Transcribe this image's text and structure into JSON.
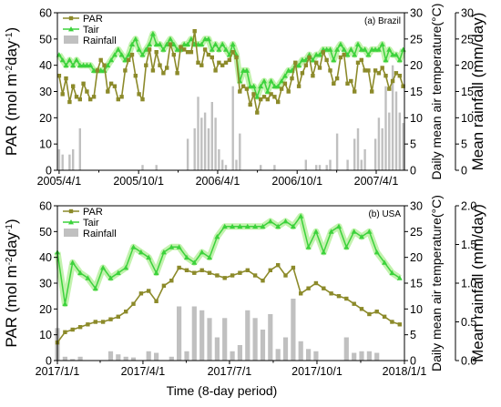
{
  "chart_data": [
    {
      "type": "line",
      "panel_label": "(a) Brazil",
      "x_ticks": [
        "2005/4/1",
        "2005/10/1",
        "2006/4/1",
        "2006/10/1",
        "2007/4/1"
      ],
      "x_range": [
        "2005-03-28",
        "2007-06-05"
      ],
      "y_left": {
        "label": "PAR (mol m-2day-1)",
        "label_main": "PAR (mol m",
        "label_sup1": "-2",
        "label_mid": "day",
        "label_sup2": "-1",
        "label_end": ")",
        "range": [
          0,
          60
        ],
        "ticks": [
          "0",
          "10",
          "20",
          "30",
          "40",
          "50",
          "60"
        ]
      },
      "y_right1": {
        "label": "Daily mean air temperature(°C)",
        "range": [
          0,
          30
        ],
        "ticks": [
          "0",
          "5",
          "10",
          "15",
          "20",
          "25",
          "30"
        ]
      },
      "y_right2": {
        "label": "Mean rainfall (mm/day)",
        "range": [
          0,
          30
        ],
        "ticks": [
          "0",
          "5",
          "10",
          "15",
          "20",
          "25",
          "30"
        ]
      },
      "legend": {
        "position": "top-left",
        "entries": [
          "PAR",
          "Tair",
          "Rainfall"
        ]
      },
      "colors": {
        "par": "#8c8a2a",
        "tair": "#3cd23c",
        "tair_glow": "#b8f0a0",
        "rainfall": "#c0c0c0"
      },
      "series": [
        {
          "name": "PAR",
          "axis": "left",
          "start": "2005-04-01",
          "step_days": 8,
          "values": [
            36,
            29,
            35,
            26,
            32,
            28,
            27,
            33,
            30,
            27,
            28,
            38,
            42,
            40,
            30,
            33,
            32,
            27,
            28,
            38,
            42,
            44,
            36,
            29,
            27,
            40,
            46,
            38,
            45,
            40,
            37,
            39,
            48,
            44,
            37,
            47,
            46,
            45,
            45,
            53,
            41,
            40,
            46,
            44,
            43,
            38,
            41,
            40,
            41,
            42,
            45,
            43,
            30,
            32,
            31,
            25,
            29,
            22,
            27,
            28,
            27,
            29,
            28,
            26,
            31,
            33,
            30,
            35,
            41,
            32,
            37,
            40,
            43,
            36,
            41,
            39,
            45,
            42,
            38,
            33,
            35,
            43,
            44,
            33,
            34,
            30,
            41,
            42,
            38,
            38,
            30,
            38,
            37,
            39,
            36,
            31,
            34,
            37,
            36,
            32,
            34,
            29,
            30,
            28,
            29,
            28
          ]
        },
        {
          "name": "Tair",
          "axis": "right1",
          "start": "2005-04-01",
          "step_days": 8,
          "values": [
            22,
            21,
            20,
            21,
            20,
            21,
            20,
            20,
            20,
            20,
            19,
            19,
            19,
            19,
            20,
            21,
            22,
            23,
            22,
            21,
            22,
            24,
            25,
            23,
            22,
            23,
            24,
            26,
            24,
            24,
            23,
            24,
            25,
            24,
            23,
            23,
            24,
            24,
            25,
            24,
            24,
            24,
            25,
            25,
            23,
            24,
            23,
            24,
            23,
            22,
            24,
            22,
            17,
            19,
            19,
            16,
            16,
            14,
            16,
            17,
            15,
            17,
            16,
            16,
            17,
            18,
            19,
            19,
            20,
            20,
            21,
            21,
            22,
            21,
            22,
            22,
            23,
            23,
            23,
            21,
            23,
            24,
            23,
            22,
            23,
            22,
            24,
            23,
            23,
            22,
            23,
            23,
            23,
            24,
            21,
            23,
            22,
            22,
            21,
            23,
            22,
            21,
            21,
            21,
            20,
            21
          ]
        },
        {
          "name": "Rainfall",
          "axis": "right2",
          "type": "bar",
          "start": "2005-04-01",
          "step_days": 8,
          "values": [
            4,
            3,
            0,
            3,
            4,
            0,
            8,
            0,
            0,
            0,
            0,
            0,
            0,
            0,
            0,
            0,
            0,
            0,
            0,
            0,
            0,
            0,
            0,
            0,
            1,
            0,
            0,
            0,
            1,
            0,
            0,
            0,
            0,
            0,
            0,
            0,
            0,
            6,
            0,
            8,
            14,
            10,
            11,
            8,
            13,
            10,
            4,
            2,
            1,
            0,
            16,
            2,
            7,
            0,
            0,
            0,
            0,
            0,
            1,
            0,
            0,
            0,
            1,
            0,
            0,
            0,
            0,
            0,
            0,
            0,
            0,
            2,
            0,
            0,
            1,
            1,
            0,
            1,
            2,
            0,
            7,
            0,
            0,
            2,
            0,
            6,
            8,
            2,
            4,
            0,
            0,
            6,
            10,
            8,
            16,
            11,
            20,
            15,
            11,
            9,
            7,
            10,
            5,
            12,
            7,
            12,
            4,
            2,
            0,
            0,
            1,
            0,
            0,
            0,
            1,
            0,
            0,
            0
          ]
        }
      ]
    },
    {
      "type": "line",
      "panel_label": "(b) USA",
      "x_label": "Time (8-day period)",
      "x_ticks": [
        "2017/1/1",
        "2017/4/1",
        "2017/7/1",
        "2017/10/1",
        "2018/1/1"
      ],
      "x_range": [
        "2017-01-01",
        "2018-01-01"
      ],
      "y_left": {
        "label": "PAR (mol m-2day-1)",
        "label_main": "PAR (mol m",
        "label_sup1": "-2",
        "label_mid": "day",
        "label_sup2": "-1",
        "label_end": ")",
        "range": [
          0,
          60
        ],
        "ticks": [
          "0",
          "10",
          "20",
          "30",
          "40",
          "50",
          "60"
        ]
      },
      "y_right1": {
        "label": "Daily mean air temperature(°C)",
        "range": [
          0,
          30
        ],
        "ticks": [
          "0",
          "5",
          "10",
          "15",
          "20",
          "25",
          "30"
        ]
      },
      "y_right2": {
        "label": "Mean rainfall (mm/day)",
        "range": [
          0,
          2.0
        ],
        "ticks": [
          "0.0",
          "0.5",
          "1.0",
          "1.5",
          "2.0"
        ]
      },
      "legend": {
        "position": "top-left",
        "entries": [
          "PAR",
          "Tair",
          "Rainfall"
        ]
      },
      "colors": {
        "par": "#8c8a2a",
        "tair": "#3cd23c",
        "tair_glow": "#b8f0a0",
        "rainfall": "#c0c0c0"
      },
      "series": [
        {
          "name": "PAR",
          "axis": "left",
          "start": "2017-01-01",
          "step_days": 8,
          "values": [
            7,
            11,
            12,
            13,
            14,
            15,
            15,
            16,
            17,
            19,
            22,
            26,
            27,
            23,
            29,
            31,
            36,
            35,
            34,
            35,
            34,
            33,
            32,
            33,
            34,
            35,
            33,
            31,
            35,
            37,
            33,
            36,
            26,
            28,
            30,
            28,
            26,
            25,
            24,
            22,
            20,
            18,
            19,
            17,
            15,
            14,
            14,
            10,
            11,
            12,
            9,
            7
          ]
        },
        {
          "name": "Tair",
          "axis": "right1",
          "start": "2017-01-01",
          "step_days": 8,
          "values": [
            21,
            11,
            19,
            17,
            16,
            14,
            18,
            16,
            17,
            18,
            22,
            21,
            20,
            17,
            21,
            22,
            22,
            20,
            19,
            21,
            20,
            24,
            26,
            26,
            26,
            26,
            26,
            26,
            27,
            26,
            27,
            26,
            28,
            22,
            25,
            21,
            25,
            26,
            22,
            25,
            24,
            25,
            21,
            19,
            17,
            16,
            15,
            13,
            14,
            12,
            14,
            15
          ]
        },
        {
          "name": "Rainfall",
          "axis": "right2",
          "type": "bar",
          "start": "2017-01-01",
          "step_days": 8,
          "values": [
            0.42,
            0.05,
            0.02,
            0.05,
            0.0,
            0.0,
            0.0,
            0.12,
            0.08,
            0.05,
            0.04,
            0.0,
            0.12,
            0.1,
            0.0,
            0.05,
            0.7,
            0.12,
            0.7,
            0.65,
            0.55,
            0.3,
            0.55,
            0.12,
            0.2,
            0.65,
            0.55,
            0.4,
            0.6,
            0.15,
            0.3,
            0.8,
            0.25,
            0.15,
            0.12,
            0.0,
            0.0,
            0.0,
            0.3,
            0.1,
            0.12,
            0.12,
            0.1,
            0.0,
            0.0,
            0.0,
            0.0,
            0.0,
            0.0,
            0.35,
            0.3,
            0.05
          ]
        }
      ]
    }
  ]
}
